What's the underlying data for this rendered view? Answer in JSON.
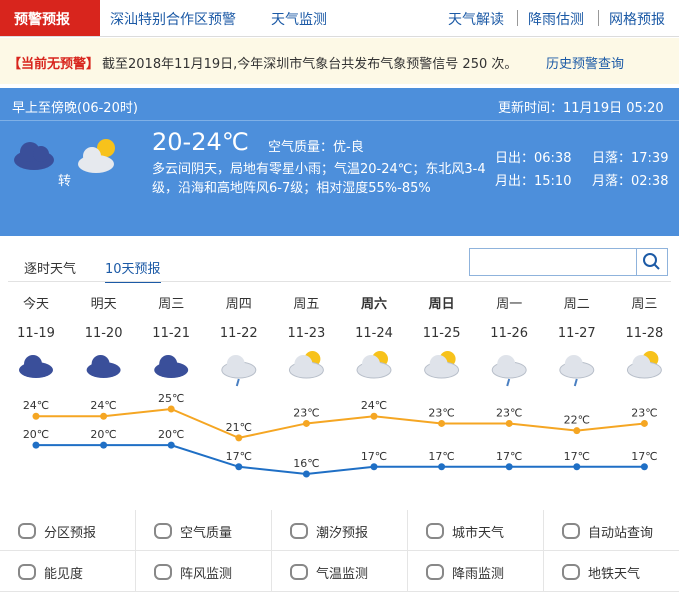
{
  "nav": {
    "active": "预警预报",
    "left": [
      "深汕特别合作区预警",
      "天气监测"
    ],
    "right": [
      "天气解读",
      "降雨估测",
      "网格预报"
    ]
  },
  "alert": {
    "status": "【当前无预警】",
    "text": "截至2018年11月19日,今年深圳市气象台共发布气象预警信号 250 次。",
    "link": "历史预警查询"
  },
  "today": {
    "period": "早上至傍晚(06-20时)",
    "updated": "更新时间：11月19日 05:20",
    "turn": "转",
    "temp": "20-24℃",
    "air": "空气质量：优-良",
    "desc": "多云间阴天，局地有零星小雨；气温20-24℃；东北风3-4级，沿海和高地阵风6-7级；相对湿度55%-85%",
    "sunrise": "日出：06:38",
    "sunset": "日落：17:39",
    "moonrise": "月出：15:10",
    "moonset": "月落：02:38"
  },
  "tabs": [
    "逐时天气",
    "10天预报"
  ],
  "forecast": {
    "days": [
      "今天",
      "明天",
      "周三",
      "周四",
      "周五",
      "周六",
      "周日",
      "周一",
      "周二",
      "周三"
    ],
    "dates": [
      "11-19",
      "11-20",
      "11-21",
      "11-22",
      "11-23",
      "11-24",
      "11-25",
      "11-26",
      "11-27",
      "11-28"
    ],
    "high": {
      "color": "#f5a623",
      "values": [
        24,
        24,
        25,
        21,
        23,
        24,
        23,
        23,
        22,
        23
      ],
      "value_labels": [
        "24℃",
        "24℃",
        "25℃",
        "21℃",
        "23℃",
        "24℃",
        "23℃",
        "23℃",
        "22℃",
        "23℃"
      ]
    },
    "low": {
      "color": "#1f6fc5",
      "values": [
        20,
        20,
        20,
        17,
        16,
        17,
        17,
        17,
        17,
        17
      ],
      "value_labels": [
        "20℃",
        "20℃",
        "20℃",
        "17℃",
        "16℃",
        "17℃",
        "17℃",
        "17℃",
        "17℃",
        "17℃"
      ]
    }
  },
  "links": [
    [
      "分区预报",
      "空气质量",
      "潮汐预报",
      "城市天气",
      "自动站查询"
    ],
    [
      "能见度",
      "阵风监测",
      "气温监测",
      "降雨监测",
      "地铁天气"
    ]
  ]
}
